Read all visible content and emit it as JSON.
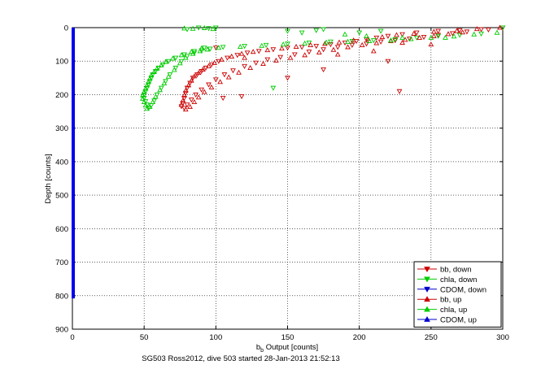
{
  "chart_data": {
    "type": "scatter",
    "xlabel": "b",
    "xlabel_sub": "b",
    "xlabel_rest": " Output [counts]",
    "ylabel": "Depth [counts]",
    "footer": "SG503 Ross2012, dive 503 started 28-Jan-2013 21:52:13",
    "xlim": [
      0,
      300
    ],
    "ylim": [
      900,
      0
    ],
    "y_reversed": true,
    "grid": true,
    "legend_position": "bottom-right",
    "xticks": [
      0,
      50,
      100,
      150,
      200,
      250,
      300
    ],
    "yticks": [
      0,
      100,
      200,
      300,
      400,
      500,
      600,
      700,
      800,
      900
    ],
    "series": [
      {
        "name": "bb, down",
        "color": "#cc0000",
        "marker": "triangle-down",
        "points": [
          [
            300,
            0
          ],
          [
            285,
            5
          ],
          [
            270,
            8
          ],
          [
            255,
            10
          ],
          [
            240,
            15
          ],
          [
            230,
            20
          ],
          [
            220,
            25
          ],
          [
            212,
            30
          ],
          [
            205,
            35
          ],
          [
            198,
            40
          ],
          [
            190,
            45
          ],
          [
            180,
            50
          ],
          [
            170,
            55
          ],
          [
            160,
            58
          ],
          [
            150,
            60
          ],
          [
            140,
            65
          ],
          [
            130,
            70
          ],
          [
            122,
            75
          ],
          [
            115,
            82
          ],
          [
            108,
            90
          ],
          [
            102,
            100
          ],
          [
            97,
            110
          ],
          [
            93,
            120
          ],
          [
            90,
            130
          ],
          [
            87,
            140
          ],
          [
            84,
            150
          ],
          [
            82,
            165
          ],
          [
            80,
            180
          ],
          [
            79,
            195
          ],
          [
            78,
            210
          ],
          [
            77,
            225
          ],
          [
            76,
            235
          ],
          [
            78,
            240
          ],
          [
            80,
            230
          ],
          [
            83,
            215
          ],
          [
            86,
            200
          ],
          [
            90,
            185
          ],
          [
            95,
            170
          ],
          [
            100,
            155
          ],
          [
            106,
            140
          ],
          [
            112,
            128
          ],
          [
            120,
            115
          ],
          [
            128,
            105
          ],
          [
            136,
            95
          ],
          [
            145,
            88
          ],
          [
            155,
            80
          ],
          [
            165,
            72
          ],
          [
            175,
            65
          ],
          [
            185,
            58
          ],
          [
            195,
            52
          ],
          [
            205,
            48
          ],
          [
            215,
            42
          ],
          [
            225,
            38
          ],
          [
            235,
            33
          ],
          [
            245,
            28
          ],
          [
            255,
            22
          ],
          [
            265,
            17
          ],
          [
            275,
            12
          ],
          [
            290,
            6
          ],
          [
            228,
            190
          ],
          [
            220,
            100
          ],
          [
            150,
            150
          ],
          [
            118,
            205
          ],
          [
            175,
            125
          ],
          [
            100,
            60
          ],
          [
            105,
            210
          ]
        ]
      },
      {
        "name": "chla, down",
        "color": "#00cc00",
        "marker": "triangle-down",
        "points": [
          [
            300,
            0
          ],
          [
            285,
            18
          ],
          [
            270,
            22
          ],
          [
            255,
            25
          ],
          [
            240,
            30
          ],
          [
            225,
            35
          ],
          [
            210,
            38
          ],
          [
            195,
            40
          ],
          [
            180,
            42
          ],
          [
            165,
            45
          ],
          [
            150,
            48
          ],
          [
            135,
            52
          ],
          [
            120,
            55
          ],
          [
            105,
            58
          ],
          [
            92,
            60
          ],
          [
            85,
            70
          ],
          [
            78,
            80
          ],
          [
            72,
            90
          ],
          [
            67,
            100
          ],
          [
            63,
            110
          ],
          [
            60,
            120
          ],
          [
            58,
            130
          ],
          [
            56,
            140
          ],
          [
            55,
            150
          ],
          [
            54,
            160
          ],
          [
            53,
            170
          ],
          [
            52,
            180
          ],
          [
            51,
            190
          ],
          [
            50,
            200
          ],
          [
            50,
            210
          ],
          [
            51,
            220
          ],
          [
            52,
            230
          ],
          [
            53,
            240
          ],
          [
            55,
            232
          ],
          [
            57,
            218
          ],
          [
            59,
            200
          ],
          [
            62,
            180
          ],
          [
            65,
            160
          ],
          [
            68,
            140
          ],
          [
            72,
            120
          ],
          [
            76,
            100
          ],
          [
            80,
            85
          ],
          [
            85,
            75
          ],
          [
            90,
            68
          ],
          [
            96,
            63
          ],
          [
            100,
            0
          ],
          [
            95,
            2
          ],
          [
            88,
            0
          ],
          [
            80,
            5
          ],
          [
            140,
            180
          ],
          [
            175,
            5
          ],
          [
            170,
            8
          ],
          [
            160,
            15
          ],
          [
            150,
            10
          ],
          [
            200,
            15
          ],
          [
            215,
            10
          ]
        ]
      },
      {
        "name": "CDOM, down",
        "color": "#0000cc",
        "marker": "triangle-down",
        "points": []
      },
      {
        "name": "bb, up",
        "color": "#cc0000",
        "marker": "triangle-up",
        "points": [
          [
            298,
            0
          ],
          [
            282,
            4
          ],
          [
            268,
            10
          ],
          [
            252,
            12
          ],
          [
            238,
            18
          ],
          [
            226,
            22
          ],
          [
            216,
            28
          ],
          [
            206,
            33
          ],
          [
            196,
            38
          ],
          [
            186,
            44
          ],
          [
            176,
            48
          ],
          [
            166,
            52
          ],
          [
            156,
            57
          ],
          [
            146,
            62
          ],
          [
            136,
            67
          ],
          [
            126,
            72
          ],
          [
            118,
            78
          ],
          [
            111,
            86
          ],
          [
            104,
            95
          ],
          [
            99,
            105
          ],
          [
            95,
            115
          ],
          [
            91,
            125
          ],
          [
            88,
            135
          ],
          [
            85,
            145
          ],
          [
            83,
            158
          ],
          [
            81,
            172
          ],
          [
            79,
            188
          ],
          [
            78,
            202
          ],
          [
            77,
            218
          ],
          [
            76,
            230
          ],
          [
            79,
            244
          ],
          [
            82,
            236
          ],
          [
            85,
            222
          ],
          [
            88,
            208
          ],
          [
            92,
            192
          ],
          [
            97,
            178
          ],
          [
            103,
            162
          ],
          [
            109,
            148
          ],
          [
            116,
            134
          ],
          [
            124,
            120
          ],
          [
            133,
            108
          ],
          [
            142,
            98
          ],
          [
            152,
            90
          ],
          [
            162,
            82
          ],
          [
            172,
            74
          ],
          [
            182,
            66
          ],
          [
            192,
            58
          ],
          [
            202,
            52
          ],
          [
            212,
            46
          ],
          [
            222,
            40
          ],
          [
            232,
            36
          ],
          [
            242,
            30
          ],
          [
            252,
            25
          ],
          [
            262,
            19
          ],
          [
            272,
            14
          ],
          [
            250,
            50
          ],
          [
            230,
            45
          ],
          [
            210,
            70
          ],
          [
            185,
            80
          ],
          [
            120,
            90
          ]
        ]
      },
      {
        "name": "chla, up",
        "color": "#00cc00",
        "marker": "triangle-up",
        "points": [
          [
            296,
            15
          ],
          [
            280,
            20
          ],
          [
            266,
            26
          ],
          [
            250,
            30
          ],
          [
            236,
            34
          ],
          [
            222,
            38
          ],
          [
            207,
            40
          ],
          [
            192,
            42
          ],
          [
            177,
            44
          ],
          [
            162,
            47
          ],
          [
            147,
            50
          ],
          [
            132,
            54
          ],
          [
            117,
            57
          ],
          [
            102,
            60
          ],
          [
            90,
            62
          ],
          [
            83,
            72
          ],
          [
            76,
            82
          ],
          [
            70,
            92
          ],
          [
            65,
            102
          ],
          [
            62,
            112
          ],
          [
            59,
            122
          ],
          [
            57,
            132
          ],
          [
            55,
            142
          ],
          [
            54,
            152
          ],
          [
            53,
            162
          ],
          [
            52,
            172
          ],
          [
            51,
            182
          ],
          [
            50,
            192
          ],
          [
            49,
            202
          ],
          [
            49,
            212
          ],
          [
            50,
            222
          ],
          [
            51,
            232
          ],
          [
            52,
            242
          ],
          [
            54,
            236
          ],
          [
            56,
            222
          ],
          [
            58,
            206
          ],
          [
            61,
            186
          ],
          [
            64,
            166
          ],
          [
            67,
            146
          ],
          [
            71,
            126
          ],
          [
            75,
            106
          ],
          [
            79,
            90
          ],
          [
            84,
            78
          ],
          [
            89,
            70
          ],
          [
            94,
            65
          ],
          [
            98,
            4
          ],
          [
            92,
            1
          ],
          [
            84,
            3
          ],
          [
            78,
            2
          ],
          [
            190,
            20
          ],
          [
            205,
            25
          ],
          [
            230,
            30
          ],
          [
            260,
            30
          ]
        ]
      },
      {
        "name": "CDOM, up",
        "color": "#0000cc",
        "marker": "triangle-up",
        "points": []
      }
    ],
    "cdom_line": {
      "x": 0,
      "y_from": 0,
      "y_to": 808
    }
  }
}
